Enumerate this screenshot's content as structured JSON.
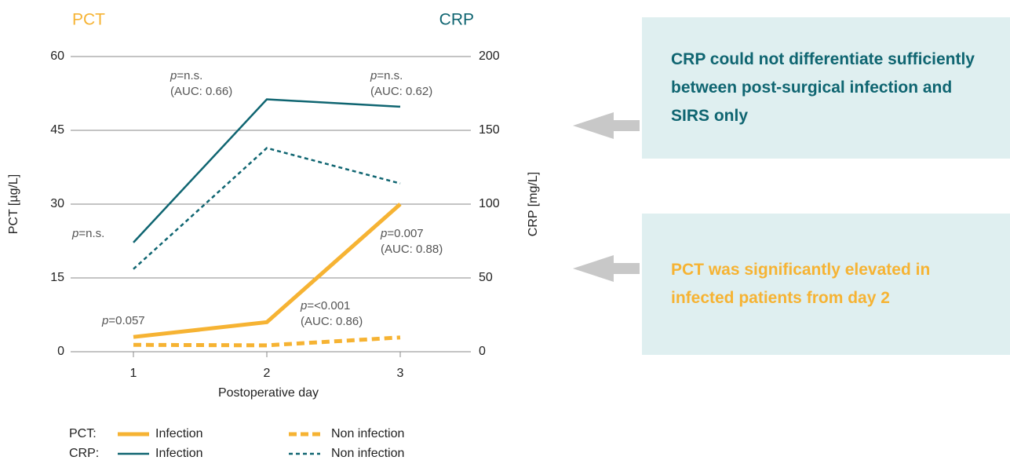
{
  "chart_data": {
    "type": "line",
    "y_title": "PCT",
    "y2_title": "CRP",
    "ylabel": "PCT [µg/L]",
    "y2label": "CRP [mg/L]",
    "xlabel": "Postoperative day",
    "x": [
      1,
      2,
      3
    ],
    "xlim": [
      0.5,
      3.5
    ],
    "xticks": [
      1,
      2,
      3
    ],
    "ylim": [
      0,
      60
    ],
    "yticks": [
      0,
      15,
      30,
      45,
      60
    ],
    "y2lim": [
      0,
      200
    ],
    "y2ticks": [
      0,
      50,
      100,
      150,
      200
    ],
    "grid": true,
    "legend_groups": [
      "PCT:",
      "CRP:"
    ],
    "series": [
      {
        "name": "Infection",
        "group": 0,
        "color": "#f6b333",
        "dashed": false,
        "values": [
          3,
          6,
          30
        ]
      },
      {
        "name": "Non infection",
        "group": 0,
        "color": "#f6b333",
        "dashed": true,
        "values": [
          1.4,
          1.3,
          2.9
        ]
      },
      {
        "name": "Infection",
        "group": 1,
        "color": "#0f6571",
        "dashed": false,
        "axis": "y2",
        "values": [
          74,
          171,
          166
        ]
      },
      {
        "name": "Non infection",
        "group": 1,
        "color": "#0f6571",
        "dashed": true,
        "axis": "y2",
        "values": [
          56,
          138,
          114
        ]
      }
    ],
    "annotations": [
      {
        "prefix": "p",
        "text": "=n.s.",
        "auc": "(AUC: 0.66)"
      },
      {
        "prefix": "p",
        "text": "=n.s.",
        "auc": "(AUC: 0.62)"
      },
      {
        "prefix": "p",
        "text": "=n.s."
      },
      {
        "prefix": "p",
        "text": "=0.007",
        "auc": "(AUC: 0.88)"
      },
      {
        "prefix": "p",
        "text": "=<0.001",
        "auc": "(AUC: 0.86)"
      },
      {
        "prefix": "p",
        "text": "=0.057"
      }
    ],
    "callouts": [
      {
        "text": "CRP could not differentiate sufficiently between post-surgical infection and SIRS only",
        "color": "#0f6571"
      },
      {
        "text": "PCT was significantly elevated in infected patients from day 2",
        "color": "#f6b333"
      }
    ]
  }
}
